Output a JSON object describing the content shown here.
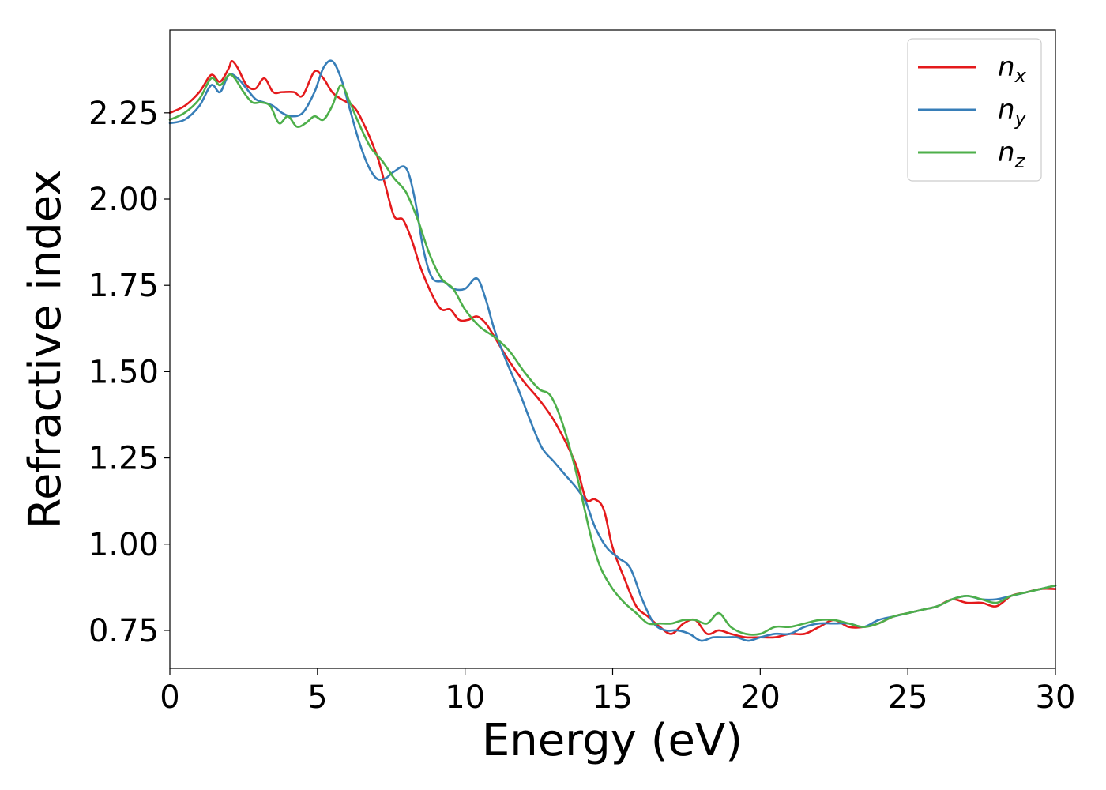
{
  "chart_data": {
    "type": "line",
    "title": "",
    "xlabel": "Energy (eV)",
    "ylabel": "Refractive index",
    "xlim": [
      0,
      30
    ],
    "ylim": [
      0.64,
      2.49
    ],
    "xticks": [
      "0",
      "5",
      "10",
      "15",
      "20",
      "25",
      "30"
    ],
    "yticks": [
      "0.75",
      "1.00",
      "1.25",
      "1.50",
      "1.75",
      "2.00",
      "2.25"
    ],
    "grid": false,
    "legend_position": "top-right",
    "series": [
      {
        "name": "n",
        "subscript": "x",
        "color": "#e41a1c",
        "x": [
          0,
          0.5,
          1.0,
          1.4,
          1.7,
          2.0,
          2.1,
          2.3,
          2.6,
          2.9,
          3.2,
          3.5,
          3.8,
          4.2,
          4.5,
          4.9,
          5.2,
          5.5,
          5.8,
          6.2,
          6.5,
          7.0,
          7.3,
          7.6,
          7.9,
          8.2,
          8.5,
          8.9,
          9.2,
          9.5,
          9.8,
          10.1,
          10.4,
          10.7,
          11.0,
          11.5,
          12.0,
          12.5,
          13.0,
          13.5,
          13.8,
          14.1,
          14.4,
          14.7,
          15.0,
          15.4,
          15.8,
          16.2,
          16.6,
          17.0,
          17.4,
          17.8,
          18.2,
          18.6,
          19.0,
          19.5,
          20.0,
          20.5,
          21.0,
          21.5,
          22.0,
          22.5,
          23.0,
          23.5,
          24.0,
          24.5,
          25.0,
          25.5,
          26.0,
          26.5,
          27.0,
          27.5,
          28.0,
          28.5,
          29.0,
          29.5,
          30.0
        ],
        "y": [
          2.25,
          2.27,
          2.31,
          2.36,
          2.34,
          2.38,
          2.4,
          2.38,
          2.33,
          2.32,
          2.35,
          2.31,
          2.31,
          2.31,
          2.3,
          2.37,
          2.35,
          2.31,
          2.29,
          2.27,
          2.23,
          2.13,
          2.04,
          1.95,
          1.94,
          1.88,
          1.8,
          1.72,
          1.68,
          1.68,
          1.65,
          1.65,
          1.66,
          1.64,
          1.6,
          1.53,
          1.47,
          1.42,
          1.36,
          1.28,
          1.22,
          1.13,
          1.13,
          1.1,
          0.99,
          0.9,
          0.82,
          0.79,
          0.76,
          0.74,
          0.77,
          0.78,
          0.74,
          0.75,
          0.74,
          0.73,
          0.73,
          0.73,
          0.74,
          0.74,
          0.76,
          0.78,
          0.76,
          0.76,
          0.77,
          0.79,
          0.8,
          0.81,
          0.82,
          0.84,
          0.83,
          0.83,
          0.82,
          0.85,
          0.86,
          0.87,
          0.87
        ]
      },
      {
        "name": "n",
        "subscript": "y",
        "color": "#377eb8",
        "x": [
          0,
          0.5,
          1.0,
          1.4,
          1.7,
          2.0,
          2.3,
          2.6,
          2.9,
          3.2,
          3.5,
          3.8,
          4.1,
          4.5,
          4.9,
          5.2,
          5.5,
          5.8,
          6.1,
          6.4,
          6.7,
          7.0,
          7.3,
          7.6,
          8.0,
          8.3,
          8.6,
          8.9,
          9.3,
          9.6,
          10.0,
          10.4,
          10.7,
          11.0,
          11.4,
          11.8,
          12.2,
          12.6,
          13.0,
          13.4,
          13.8,
          14.1,
          14.4,
          14.8,
          15.2,
          15.6,
          16.0,
          16.4,
          16.8,
          17.2,
          17.6,
          18.0,
          18.4,
          18.8,
          19.2,
          19.6,
          20.0,
          20.5,
          21.0,
          21.5,
          22.0,
          22.5,
          23.0,
          23.5,
          24.0,
          24.5,
          25.0,
          25.5,
          26.0,
          26.5,
          27.0,
          27.5,
          28.0,
          28.5,
          29.0,
          29.5,
          30.0
        ],
        "y": [
          2.22,
          2.23,
          2.27,
          2.33,
          2.31,
          2.36,
          2.35,
          2.32,
          2.29,
          2.28,
          2.27,
          2.25,
          2.24,
          2.25,
          2.31,
          2.38,
          2.4,
          2.35,
          2.26,
          2.17,
          2.1,
          2.06,
          2.06,
          2.08,
          2.09,
          2.0,
          1.85,
          1.77,
          1.76,
          1.74,
          1.74,
          1.77,
          1.71,
          1.62,
          1.53,
          1.45,
          1.36,
          1.28,
          1.24,
          1.2,
          1.16,
          1.12,
          1.05,
          0.99,
          0.96,
          0.93,
          0.84,
          0.77,
          0.75,
          0.75,
          0.74,
          0.72,
          0.73,
          0.73,
          0.73,
          0.72,
          0.73,
          0.74,
          0.74,
          0.76,
          0.77,
          0.77,
          0.77,
          0.76,
          0.78,
          0.79,
          0.8,
          0.81,
          0.82,
          0.84,
          0.85,
          0.84,
          0.84,
          0.85,
          0.86,
          0.87,
          0.88
        ]
      },
      {
        "name": "n",
        "subscript": "z",
        "color": "#4daf4a",
        "x": [
          0,
          0.5,
          1.0,
          1.4,
          1.7,
          2.0,
          2.2,
          2.5,
          2.8,
          3.1,
          3.4,
          3.7,
          4.0,
          4.3,
          4.6,
          4.9,
          5.2,
          5.5,
          5.8,
          6.1,
          6.4,
          6.8,
          7.2,
          7.6,
          8.0,
          8.4,
          8.8,
          9.2,
          9.6,
          10.0,
          10.5,
          11.0,
          11.5,
          12.0,
          12.5,
          12.9,
          13.3,
          13.7,
          14.0,
          14.3,
          14.6,
          15.0,
          15.4,
          15.8,
          16.2,
          16.6,
          17.0,
          17.4,
          17.8,
          18.2,
          18.6,
          19.0,
          19.5,
          20.0,
          20.5,
          21.0,
          21.5,
          22.0,
          22.5,
          23.0,
          23.5,
          24.0,
          24.5,
          25.0,
          25.5,
          26.0,
          26.5,
          27.0,
          27.5,
          28.0,
          28.5,
          29.0,
          29.5,
          30.0
        ],
        "y": [
          2.23,
          2.25,
          2.29,
          2.35,
          2.33,
          2.36,
          2.35,
          2.31,
          2.28,
          2.28,
          2.27,
          2.22,
          2.24,
          2.21,
          2.22,
          2.24,
          2.23,
          2.27,
          2.33,
          2.28,
          2.22,
          2.15,
          2.11,
          2.06,
          2.02,
          1.94,
          1.84,
          1.77,
          1.74,
          1.68,
          1.63,
          1.6,
          1.56,
          1.5,
          1.45,
          1.43,
          1.35,
          1.23,
          1.12,
          1.01,
          0.93,
          0.87,
          0.83,
          0.8,
          0.77,
          0.77,
          0.77,
          0.78,
          0.78,
          0.77,
          0.8,
          0.76,
          0.74,
          0.74,
          0.76,
          0.76,
          0.77,
          0.78,
          0.78,
          0.77,
          0.76,
          0.77,
          0.79,
          0.8,
          0.81,
          0.82,
          0.84,
          0.85,
          0.84,
          0.83,
          0.85,
          0.86,
          0.87,
          0.88
        ]
      }
    ]
  }
}
